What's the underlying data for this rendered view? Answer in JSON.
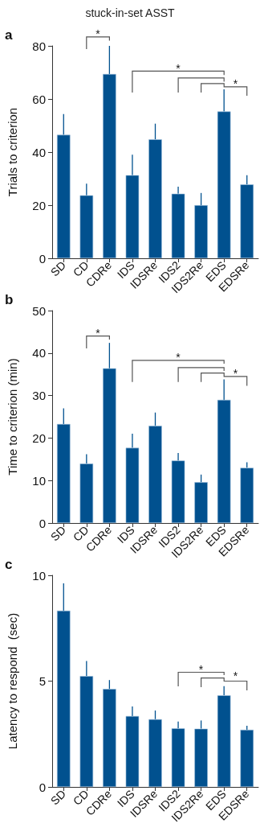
{
  "chart_data": [
    {
      "type": "bar",
      "title": "stuck-in-set ASST",
      "ylabel": "Trials to criterion",
      "annotations": [
        "a",
        "*",
        "*",
        "*"
      ],
      "categories": [
        "SD",
        "CD",
        "CDRe",
        "IDS",
        "IDSRe",
        "IDS2",
        "IDS2Re",
        "EDS",
        "EDSRe"
      ],
      "values": [
        46.5,
        23.7,
        69.4,
        31.3,
        44.8,
        24.3,
        20.0,
        55.3,
        27.8
      ],
      "errors": [
        [
          46.5,
          54.3
        ],
        [
          23.7,
          28.1
        ],
        [
          69.4,
          80.0
        ],
        [
          31.3,
          39.0
        ],
        [
          44.8,
          50.7
        ],
        [
          24.3,
          27.0
        ],
        [
          20.0,
          24.6
        ],
        [
          55.3,
          63.6
        ],
        [
          27.8,
          31.3
        ]
      ],
      "color": "#01518f",
      "ylim": [
        0,
        80
      ],
      "yticks": [
        0,
        20,
        40,
        60,
        80
      ]
    },
    {
      "type": "bar",
      "ylabel": "Time to criterion (min)",
      "annotations": [
        "b",
        "*",
        "*",
        "*"
      ],
      "categories": [
        "SD",
        "CD",
        "CDRe",
        "IDS",
        "IDSRe",
        "IDS2",
        "IDS2Re",
        "EDS",
        "EDSRe"
      ],
      "values": [
        23.3,
        14.0,
        36.4,
        17.7,
        22.9,
        14.7,
        9.6,
        29.0,
        13.0
      ],
      "errors": [
        [
          23.3,
          27.0
        ],
        [
          14.0,
          16.2
        ],
        [
          36.4,
          42.4
        ],
        [
          17.7,
          21.0
        ],
        [
          22.9,
          26.0
        ],
        [
          14.7,
          16.5
        ],
        [
          9.6,
          11.4
        ],
        [
          29.0,
          33.8
        ],
        [
          13.0,
          14.3
        ]
      ],
      "color": "#01518f",
      "ylim": [
        0,
        50
      ],
      "yticks": [
        0,
        10,
        20,
        30,
        40,
        50
      ]
    },
    {
      "type": "bar",
      "ylabel": "Latency to respond  (sec)",
      "annotations": [
        "c",
        "*",
        "*"
      ],
      "categories": [
        "SD",
        "CD",
        "CDRe",
        "IDS",
        "IDSRe",
        "IDS2",
        "IDS2Re",
        "EDS",
        "EDSRe"
      ],
      "values": [
        8.33,
        5.24,
        4.63,
        3.35,
        3.2,
        2.77,
        2.75,
        4.33,
        2.7
      ],
      "errors": [
        [
          8.33,
          9.62
        ],
        [
          5.24,
          5.95
        ],
        [
          4.63,
          5.05
        ],
        [
          3.35,
          3.8
        ],
        [
          3.2,
          3.61
        ],
        [
          2.77,
          3.09
        ],
        [
          2.75,
          3.14
        ],
        [
          4.33,
          4.76
        ],
        [
          2.7,
          2.89
        ]
      ],
      "color": "#01518f",
      "ylim": [
        0,
        10
      ],
      "yticks": [
        0,
        5,
        10
      ]
    }
  ]
}
